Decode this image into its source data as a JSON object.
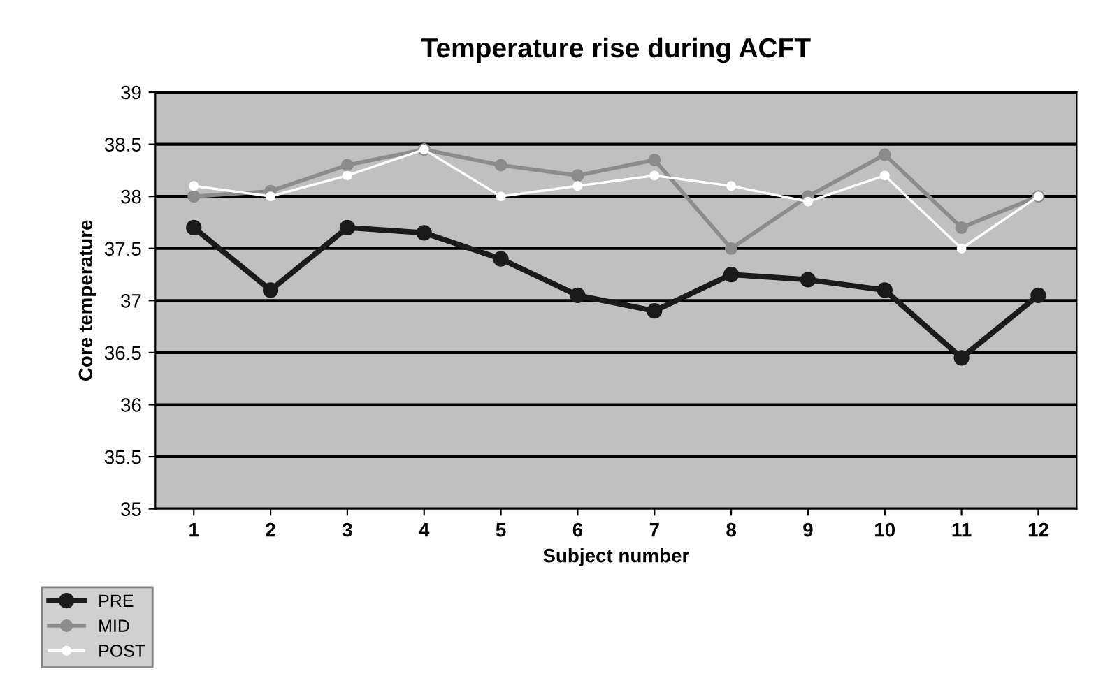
{
  "chart_data": {
    "type": "line",
    "title": "Temperature rise during ACFT",
    "xlabel": "Subject number",
    "ylabel": "Core temperature",
    "categories": [
      "1",
      "2",
      "3",
      "4",
      "5",
      "6",
      "7",
      "8",
      "9",
      "10",
      "11",
      "12"
    ],
    "series": [
      {
        "name": "PRE",
        "color": "#1a1a1a",
        "values": [
          37.7,
          37.1,
          37.7,
          37.65,
          37.4,
          37.05,
          36.9,
          37.25,
          37.2,
          37.1,
          36.45,
          37.05
        ]
      },
      {
        "name": "MID",
        "color": "#8c8c8c",
        "values": [
          38.0,
          38.05,
          38.3,
          38.45,
          38.3,
          38.2,
          38.35,
          37.5,
          38.0,
          38.4,
          37.7,
          38.0
        ]
      },
      {
        "name": "POST",
        "color": "#ffffff",
        "values": [
          38.1,
          38.0,
          38.2,
          38.45,
          38.0,
          38.1,
          38.2,
          38.1,
          37.95,
          38.2,
          37.5,
          38.0
        ]
      }
    ],
    "ylim": [
      35,
      39
    ],
    "yticks": [
      35,
      35.5,
      36,
      36.5,
      37,
      37.5,
      38,
      38.5,
      39
    ],
    "grid": "y",
    "legend": "bottom left",
    "marker": "circle",
    "line_style": "solid"
  }
}
